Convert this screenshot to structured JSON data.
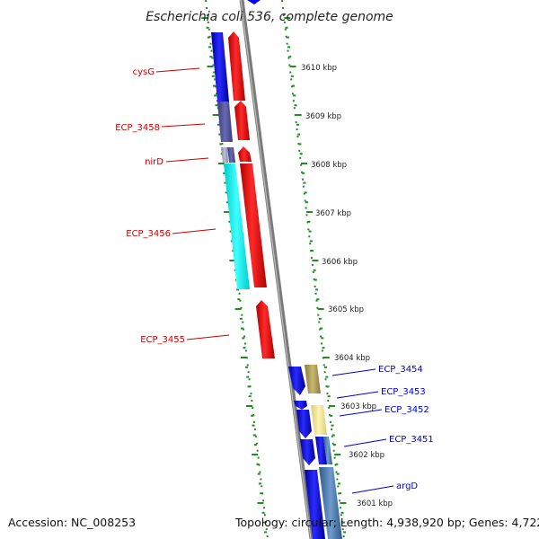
{
  "title": "Escherichia coli 536, complete genome",
  "accession": "Accession: NC_008253",
  "topology": "Topology: circular; Length: 4,938,920 bp; Genes: 4,722",
  "colors": {
    "forward": "#0000ee",
    "reverse": "#ff0000",
    "backbone": "#888888",
    "ruler": "#228b22",
    "label_fwd": "#0000cc",
    "label_rev": "#cc0000"
  },
  "kbp_ticks": [
    "3610 kbp",
    "3609 kbp",
    "3608 kbp",
    "3607 kbp",
    "3606 kbp",
    "3605 kbp",
    "3604 kbp",
    "3603 kbp",
    "3602 kbp",
    "3601 kbp"
  ],
  "left_labels": [
    "cysG",
    "ECP_3458",
    "nirD",
    "ECP_3456",
    "ECP_3455"
  ],
  "right_labels": [
    "ECP_3454",
    "ECP_3453",
    "ECP_3452",
    "ECP_3451",
    "argD"
  ]
}
